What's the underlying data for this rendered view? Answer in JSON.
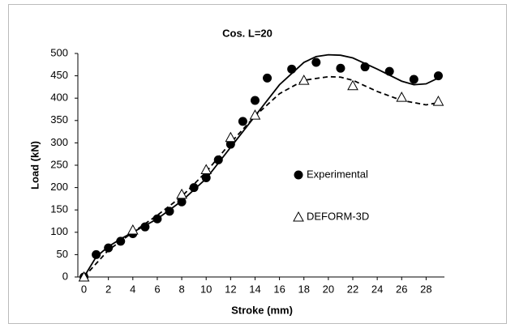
{
  "chart_data": {
    "type": "scatter",
    "title": "Cos. L=20",
    "x_label": "Stroke (mm)",
    "y_label": "Load (kN)",
    "xlim": [
      -0.5,
      29.5
    ],
    "ylim": [
      0,
      500
    ],
    "xticks": [
      0,
      2,
      4,
      6,
      8,
      10,
      12,
      14,
      16,
      18,
      20,
      22,
      24,
      26,
      28
    ],
    "yticks": [
      0,
      50,
      100,
      150,
      200,
      250,
      300,
      350,
      400,
      450,
      500
    ],
    "grid": false,
    "series": [
      {
        "name": "Experimental",
        "color": "#000000",
        "marker": "circle",
        "x": [
          0,
          1,
          2,
          3,
          4,
          5,
          6,
          7,
          8,
          9,
          10,
          11,
          12,
          13,
          14,
          15,
          17,
          19,
          21,
          23,
          25,
          27,
          29
        ],
        "values": [
          0,
          50,
          65,
          80,
          97,
          112,
          130,
          147,
          168,
          200,
          222,
          262,
          297,
          348,
          395,
          445,
          465,
          480,
          467,
          470,
          460,
          442,
          450
        ],
        "trend_dash": false,
        "trend_x": [
          0,
          1,
          2,
          3,
          4,
          6,
          8,
          10,
          12,
          14,
          16,
          18,
          19,
          20,
          21,
          22,
          24,
          26,
          27,
          28,
          29
        ],
        "trend_values": [
          0,
          45,
          68,
          85,
          100,
          130,
          170,
          220,
          290,
          360,
          430,
          480,
          493,
          497,
          496,
          490,
          465,
          438,
          430,
          432,
          445
        ]
      },
      {
        "name": "DEFORM-3D",
        "color": "#000000",
        "marker": "triangle",
        "x": [
          0,
          4,
          8,
          10,
          12,
          14,
          18,
          22,
          26,
          29
        ],
        "values": [
          0,
          105,
          185,
          240,
          312,
          362,
          440,
          428,
          402,
          393
        ],
        "trend_dash": true,
        "trend_x": [
          0,
          2,
          4,
          6,
          8,
          10,
          12,
          14,
          16,
          18,
          20,
          21,
          22,
          24,
          26,
          28,
          29
        ],
        "trend_values": [
          0,
          60,
          100,
          138,
          180,
          235,
          300,
          360,
          410,
          440,
          448,
          447,
          440,
          415,
          395,
          385,
          390
        ]
      }
    ]
  }
}
